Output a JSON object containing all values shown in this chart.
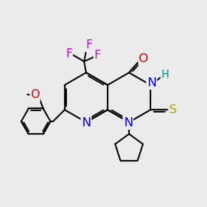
{
  "bg_color": "#ebebeb",
  "bond_lw": 1.6,
  "atom_bg": "#ebebeb",
  "colors": {
    "C": "#000000",
    "N": "#0000dd",
    "O": "#dd0000",
    "S": "#aaaa00",
    "F": "#cc00cc",
    "H": "#008888"
  },
  "fs": 13
}
